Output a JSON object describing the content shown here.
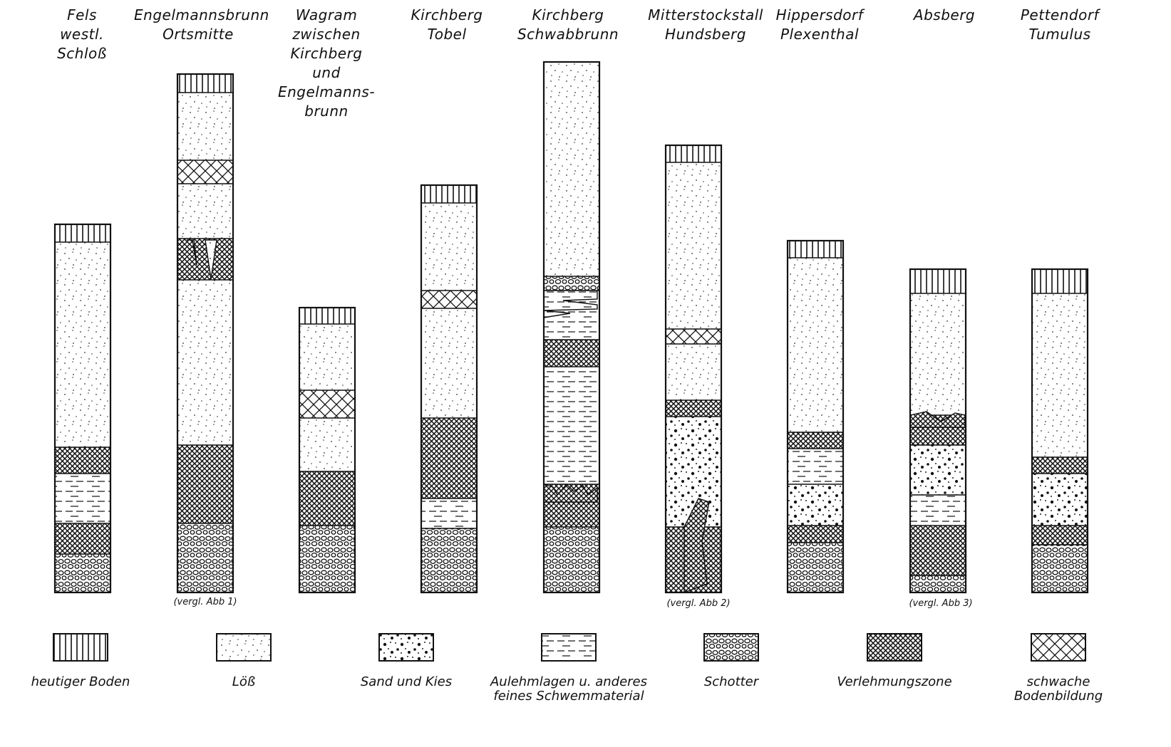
{
  "columns": [
    {
      "id": "fels",
      "header": [
        "Fels",
        "westl.",
        "Schloß"
      ],
      "ref": ""
    },
    {
      "id": "engelmannsbrunn",
      "header": [
        "Engelmannsbrunn",
        "Ortsmitte"
      ],
      "ref": "(vergl. Abb 1)"
    },
    {
      "id": "wagram",
      "header": [
        "Wagram",
        "zwischen",
        "Kirchberg",
        "und",
        "Engelmanns-",
        "brunn"
      ],
      "ref": ""
    },
    {
      "id": "kirchberg-tobel",
      "header": [
        "Kirchberg",
        "Tobel"
      ],
      "ref": ""
    },
    {
      "id": "kirchberg-schwabbrunn",
      "header": [
        "Kirchberg",
        "Schwabbrunn"
      ],
      "ref": ""
    },
    {
      "id": "mitterstockstall",
      "header": [
        "Mitterstockstall",
        "Hundsberg"
      ],
      "ref": "(vergl. Abb 2)"
    },
    {
      "id": "hippersdorf",
      "header": [
        "Hippersdorf",
        "Plexenthal"
      ],
      "ref": ""
    },
    {
      "id": "absberg",
      "header": [
        "Absberg"
      ],
      "ref": "(vergl. Abb 3)"
    },
    {
      "id": "pettendorf",
      "header": [
        "Pettendorf",
        "Tumulus"
      ],
      "ref": ""
    }
  ],
  "legend": [
    {
      "key": "boden",
      "pattern": "heutiger-boden",
      "label": [
        "heutiger Boden"
      ]
    },
    {
      "key": "loess",
      "pattern": "loess",
      "label": [
        "Löß"
      ]
    },
    {
      "key": "sand",
      "pattern": "sand-kies",
      "label": [
        "Sand und Kies"
      ]
    },
    {
      "key": "aulehm",
      "pattern": "aulehm",
      "label": [
        "Aulehmlagen u. anderes",
        "feines Schwemmaterial"
      ]
    },
    {
      "key": "schotter",
      "pattern": "schotter",
      "label": [
        "Schotter"
      ]
    },
    {
      "key": "verlehmung",
      "pattern": "verlehmungszone",
      "label": [
        "Verlehmungszone"
      ]
    },
    {
      "key": "schwach",
      "pattern": "schwache-bodenbildung",
      "label": [
        "schwache",
        "Bodenbildung"
      ]
    }
  ]
}
